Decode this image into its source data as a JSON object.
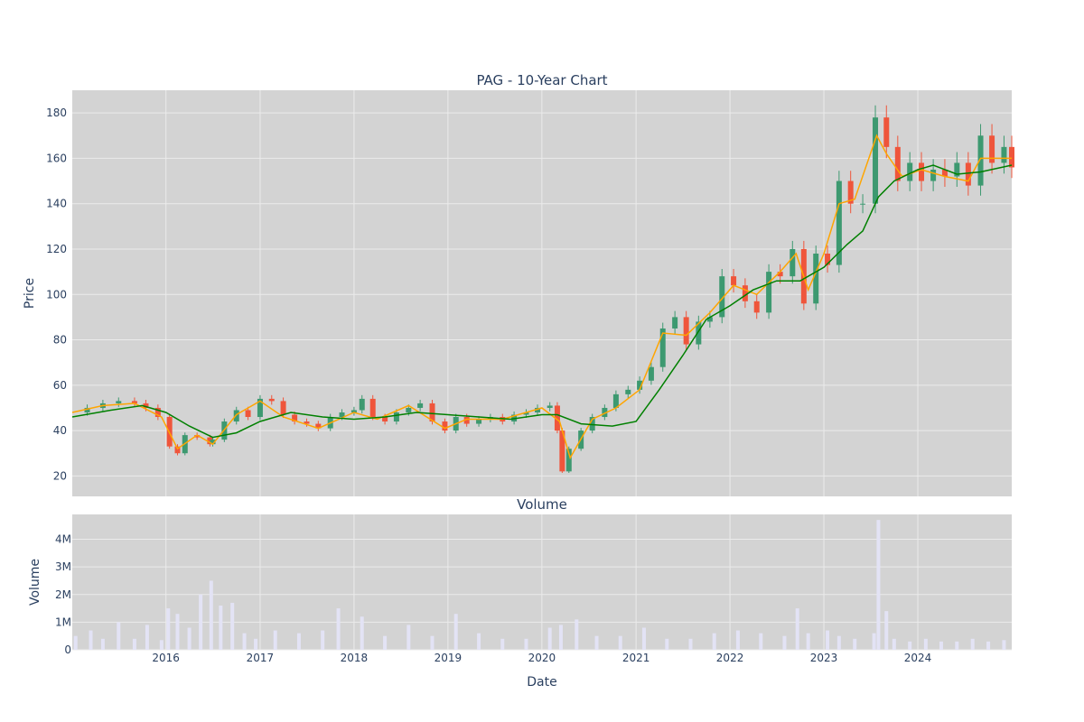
{
  "chart_data": [
    {
      "type": "candlestick",
      "title": "PAG - 10-Year Chart",
      "ylabel": "Price",
      "xlabel": "",
      "x_range": [
        "2015-01-02",
        "2024-12-31"
      ],
      "ylim": [
        11,
        190
      ],
      "y_ticks": [
        20,
        40,
        60,
        80,
        100,
        120,
        140,
        160,
        180
      ],
      "grid": true,
      "legend": "none",
      "colors": {
        "increasing": "#3d9970",
        "decreasing": "#ef553b",
        "ma_short": "#ffa500",
        "ma_long": "#008000"
      },
      "series": [
        {
          "kind": "close_price",
          "x": [
            "2015-01-02",
            "2015-03-01",
            "2015-05-01",
            "2015-07-01",
            "2015-09-01",
            "2015-10-15",
            "2015-12-01",
            "2016-01-15",
            "2016-02-15",
            "2016-03-15",
            "2016-05-01",
            "2016-06-20",
            "2016-07-01",
            "2016-08-15",
            "2016-10-01",
            "2016-11-15",
            "2017-01-01",
            "2017-02-15",
            "2017-04-01",
            "2017-05-15",
            "2017-07-01",
            "2017-08-15",
            "2017-10-01",
            "2017-11-15",
            "2018-01-01",
            "2018-02-01",
            "2018-03-15",
            "2018-05-01",
            "2018-06-15",
            "2018-08-01",
            "2018-09-15",
            "2018-11-01",
            "2018-12-20",
            "2019-02-01",
            "2019-03-15",
            "2019-05-01",
            "2019-06-15",
            "2019-08-01",
            "2019-09-15",
            "2019-11-01",
            "2019-12-15",
            "2020-02-01",
            "2020-03-01",
            "2020-03-20",
            "2020-04-15",
            "2020-06-01",
            "2020-07-15",
            "2020-09-01",
            "2020-10-15",
            "2020-12-01",
            "2021-01-15",
            "2021-03-01",
            "2021-04-15",
            "2021-06-01",
            "2021-07-15",
            "2021-09-01",
            "2021-10-15",
            "2021-12-01",
            "2022-01-15",
            "2022-03-01",
            "2022-04-15",
            "2022-06-01",
            "2022-07-15",
            "2022-09-01",
            "2022-10-15",
            "2022-12-01",
            "2023-01-15",
            "2023-03-01",
            "2023-04-15",
            "2023-06-01",
            "2023-07-20",
            "2023-09-01",
            "2023-10-15",
            "2023-12-01",
            "2024-01-15",
            "2024-03-01",
            "2024-04-15",
            "2024-06-01",
            "2024-07-15",
            "2024-09-01",
            "2024-10-15",
            "2024-12-01",
            "2024-12-31"
          ],
          "values": [
            48,
            50,
            52,
            53,
            52,
            50,
            46,
            33,
            30,
            38,
            37,
            34,
            36,
            44,
            49,
            46,
            54,
            53,
            47,
            44,
            43,
            41,
            46,
            48,
            49,
            54,
            46,
            44,
            48,
            50,
            52,
            44,
            40,
            46,
            43,
            45,
            46,
            44,
            47,
            48,
            50,
            51,
            40,
            22,
            32,
            40,
            46,
            50,
            56,
            58,
            62,
            68,
            85,
            90,
            78,
            88,
            90,
            108,
            104,
            97,
            92,
            110,
            108,
            120,
            96,
            118,
            113,
            150,
            140,
            140,
            178,
            165,
            150,
            158,
            150,
            155,
            152,
            158,
            148,
            170,
            158,
            165,
            156
          ]
        },
        {
          "kind": "moving_average_short",
          "x": [
            "2015-01-02",
            "2015-05-01",
            "2015-09-01",
            "2015-12-15",
            "2016-02-15",
            "2016-05-01",
            "2016-07-01",
            "2016-10-01",
            "2017-01-01",
            "2017-04-01",
            "2017-08-15",
            "2018-01-01",
            "2018-04-01",
            "2018-08-01",
            "2018-12-20",
            "2019-03-15",
            "2019-08-01",
            "2020-01-01",
            "2020-03-10",
            "2020-04-20",
            "2020-07-15",
            "2020-10-15",
            "2021-01-15",
            "2021-04-15",
            "2021-07-15",
            "2021-10-15",
            "2022-01-15",
            "2022-04-15",
            "2022-07-15",
            "2022-09-15",
            "2022-11-01",
            "2023-01-01",
            "2023-03-01",
            "2023-05-01",
            "2023-07-25",
            "2023-09-01",
            "2023-11-01",
            "2024-01-15",
            "2024-04-15",
            "2024-07-15",
            "2024-09-01",
            "2024-12-31"
          ],
          "values": [
            48,
            51,
            52,
            46,
            32,
            38,
            34,
            47,
            53,
            46,
            41,
            48,
            45,
            51,
            41,
            45,
            45,
            50,
            44,
            28,
            45,
            50,
            58,
            83,
            82,
            92,
            104,
            100,
            110,
            118,
            102,
            118,
            140,
            142,
            170,
            162,
            152,
            155,
            152,
            150,
            160,
            160
          ]
        },
        {
          "kind": "moving_average_long",
          "x": [
            "2015-01-02",
            "2015-06-01",
            "2015-10-01",
            "2016-01-01",
            "2016-04-01",
            "2016-07-01",
            "2016-10-01",
            "2017-01-01",
            "2017-05-01",
            "2017-09-01",
            "2018-01-01",
            "2018-05-01",
            "2018-09-01",
            "2019-01-01",
            "2019-05-01",
            "2019-09-01",
            "2020-01-01",
            "2020-03-01",
            "2020-06-01",
            "2020-10-01",
            "2021-01-01",
            "2021-04-01",
            "2021-07-01",
            "2021-10-01",
            "2022-01-01",
            "2022-04-01",
            "2022-07-01",
            "2022-10-01",
            "2023-01-01",
            "2023-04-01",
            "2023-06-01",
            "2023-08-01",
            "2023-10-01",
            "2024-01-01",
            "2024-03-01",
            "2024-06-01",
            "2024-09-01",
            "2024-12-31"
          ],
          "values": [
            46,
            49,
            51,
            48,
            42,
            37,
            39,
            44,
            48,
            46,
            45,
            46,
            48,
            47,
            46,
            45,
            47,
            47,
            43,
            42,
            44,
            58,
            73,
            89,
            95,
            102,
            106,
            106,
            112,
            122,
            128,
            143,
            150,
            155,
            157,
            153,
            154,
            157
          ]
        }
      ]
    },
    {
      "type": "bar",
      "title": "Volume",
      "ylabel": "Volume",
      "xlabel": "Date",
      "x_range": [
        "2015-01-02",
        "2024-12-31"
      ],
      "x_ticks": [
        "2016",
        "2017",
        "2018",
        "2019",
        "2020",
        "2021",
        "2022",
        "2023",
        "2024"
      ],
      "ylim": [
        0,
        4900000
      ],
      "y_ticks": [
        0,
        1000000,
        2000000,
        3000000,
        4000000
      ],
      "y_tick_labels": [
        "0",
        "1M",
        "2M",
        "3M",
        "4M"
      ],
      "grid": true,
      "bar_color": "#e3e3f5",
      "series": [
        {
          "name": "",
          "x": [
            "2015-01-15",
            "2015-03-15",
            "2015-05-01",
            "2015-07-01",
            "2015-09-01",
            "2015-10-20",
            "2015-12-15",
            "2016-01-10",
            "2016-02-15",
            "2016-04-01",
            "2016-05-15",
            "2016-06-25",
            "2016-08-01",
            "2016-09-15",
            "2016-11-01",
            "2016-12-15",
            "2017-03-01",
            "2017-06-01",
            "2017-09-01",
            "2017-11-01",
            "2018-02-01",
            "2018-05-01",
            "2018-08-01",
            "2018-11-01",
            "2019-02-01",
            "2019-05-01",
            "2019-08-01",
            "2019-11-01",
            "2020-02-01",
            "2020-03-15",
            "2020-05-15",
            "2020-08-01",
            "2020-11-01",
            "2021-02-01",
            "2021-05-01",
            "2021-08-01",
            "2021-11-01",
            "2022-02-01",
            "2022-05-01",
            "2022-08-01",
            "2022-09-20",
            "2022-11-01",
            "2023-01-15",
            "2023-03-01",
            "2023-05-01",
            "2023-07-15",
            "2023-08-01",
            "2023-09-01",
            "2023-10-01",
            "2023-12-01",
            "2024-02-01",
            "2024-04-01",
            "2024-06-01",
            "2024-08-01",
            "2024-10-01",
            "2024-12-01"
          ],
          "values": [
            500000,
            700000,
            400000,
            1000000,
            400000,
            900000,
            350000,
            1500000,
            1300000,
            800000,
            2000000,
            2500000,
            1600000,
            1700000,
            600000,
            400000,
            700000,
            600000,
            700000,
            1500000,
            1200000,
            500000,
            900000,
            500000,
            1300000,
            600000,
            400000,
            400000,
            800000,
            900000,
            1100000,
            500000,
            500000,
            800000,
            400000,
            400000,
            600000,
            700000,
            600000,
            500000,
            1500000,
            600000,
            700000,
            500000,
            400000,
            600000,
            4700000,
            1400000,
            400000,
            300000,
            400000,
            300000,
            300000,
            400000,
            300000,
            350000
          ]
        }
      ]
    }
  ]
}
